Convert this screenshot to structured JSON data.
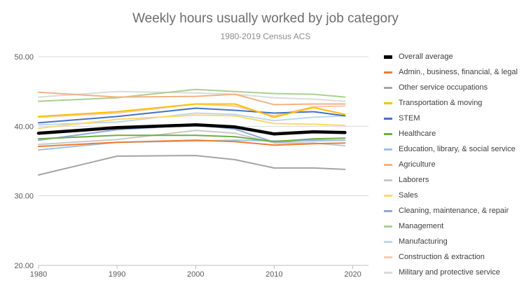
{
  "chart_data": {
    "type": "line",
    "title": "Weekly hours usually worked by job category",
    "subtitle": "1980-2019 Census ACS",
    "xlabel": "",
    "ylabel": "",
    "x": [
      1980,
      1990,
      2000,
      2005,
      2010,
      2015,
      2019
    ],
    "xlim": [
      1980,
      2022
    ],
    "ylim": [
      20,
      50
    ],
    "x_ticks": [
      1980,
      1990,
      2000,
      2010,
      2020
    ],
    "y_ticks": [
      20,
      30,
      40,
      50
    ],
    "x_tick_labels": [
      "1980",
      "1990",
      "2000",
      "2010",
      "2020"
    ],
    "y_tick_labels": [
      "20.00",
      "30.00",
      "40.00",
      "50.00"
    ],
    "grid": "horizontal",
    "legend_position": "right",
    "series": [
      {
        "name": "Overall average",
        "color": "#000000",
        "bold": true,
        "values": [
          39.0,
          39.8,
          40.2,
          39.9,
          38.9,
          39.2,
          39.1
        ]
      },
      {
        "name": "Admin., business, financial, & legal",
        "color": "#ed7d31",
        "values": [
          37.1,
          37.7,
          38.0,
          37.8,
          37.3,
          37.5,
          37.6
        ]
      },
      {
        "name": "Other service occupations",
        "color": "#a5a5a5",
        "values": [
          33.0,
          35.7,
          35.8,
          35.2,
          34.0,
          34.0,
          33.8
        ]
      },
      {
        "name": "Transportation & moving",
        "color": "#ffc000",
        "values": [
          41.4,
          42.1,
          43.2,
          43.2,
          41.3,
          42.7,
          41.7
        ]
      },
      {
        "name": "STEM",
        "color": "#4472c4",
        "values": [
          40.5,
          41.4,
          42.6,
          42.3,
          41.9,
          42.1,
          41.5
        ]
      },
      {
        "name": "Healthcare",
        "color": "#70ad47",
        "values": [
          38.2,
          38.7,
          38.7,
          38.5,
          37.8,
          38.2,
          38.3
        ]
      },
      {
        "name": "Education, library, & social service",
        "color": "#9dc3e6",
        "values": [
          36.6,
          37.7,
          37.9,
          38.0,
          37.9,
          37.9,
          38.0
        ]
      },
      {
        "name": "Agriculture",
        "color": "#f4b183",
        "values": [
          44.9,
          44.2,
          44.3,
          44.6,
          43.1,
          43.2,
          43.2
        ]
      },
      {
        "name": "Laborers",
        "color": "#c9c9c9",
        "values": [
          37.4,
          38.1,
          39.4,
          39.0,
          37.6,
          37.6,
          37.2
        ]
      },
      {
        "name": "Sales",
        "color": "#ffd966",
        "values": [
          39.7,
          41.0,
          41.6,
          41.5,
          40.4,
          40.3,
          40.1
        ]
      },
      {
        "name": "Cleaning, maintenance, & repair",
        "color": "#8faadc",
        "values": [
          38.0,
          39.5,
          40.2,
          39.6,
          37.7,
          38.0,
          38.0
        ]
      },
      {
        "name": "Management",
        "color": "#a9d18e",
        "values": [
          43.6,
          44.1,
          45.3,
          45.0,
          44.7,
          44.6,
          44.2
        ]
      },
      {
        "name": "Manufacturing",
        "color": "#bdd7ee",
        "values": [
          40.2,
          40.6,
          41.9,
          41.7,
          40.8,
          41.3,
          41.5
        ]
      },
      {
        "name": "Construction & extraction",
        "color": "#f8cbad",
        "values": [
          41.3,
          41.9,
          43.2,
          42.9,
          41.5,
          42.8,
          42.9
        ]
      },
      {
        "name": "Military and protective service",
        "color": "#dbdbdb",
        "values": [
          44.2,
          45.0,
          44.8,
          44.6,
          44.1,
          43.9,
          43.6
        ]
      }
    ]
  }
}
